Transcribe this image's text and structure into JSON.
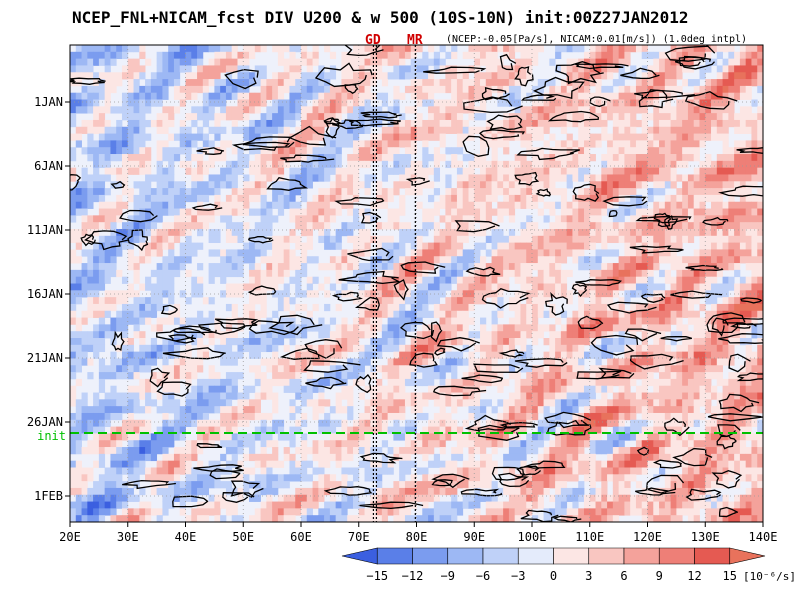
{
  "chart_data": {
    "type": "heatmap",
    "title": "NCEP_FNL+NICAM_fcst DIV U200 & w 500 (10S-10N) init:00Z27JAN2012",
    "subtitle": "(NCEP:-0.05[Pa/s], NICAM:0.01[m/s]) (1.0deg intpl)",
    "x_ticks": [
      "20E",
      "30E",
      "40E",
      "50E",
      "60E",
      "70E",
      "80E",
      "90E",
      "100E",
      "110E",
      "120E",
      "130E",
      "140E"
    ],
    "x_range": [
      20,
      140
    ],
    "y_ticks": [
      "1JAN",
      "6JAN",
      "11JAN",
      "16JAN",
      "21JAN",
      "26JAN",
      "1FEB"
    ],
    "init_label": "init",
    "markers": [
      {
        "label": "GD",
        "lon": 72.8
      },
      {
        "label": "MR",
        "lon": 79.8
      }
    ],
    "colorbar": {
      "ticks": [
        "-15",
        "-12",
        "-9",
        "-6",
        "-3",
        "0",
        "3",
        "6",
        "9",
        "12",
        "15"
      ],
      "unit": "[10⁻⁶/s]",
      "colors": [
        "#3b5fe0",
        "#5a7fe8",
        "#7b9cef",
        "#9db8f4",
        "#bfd1f8",
        "#e4ebfb",
        "#fce6e4",
        "#f9c6c1",
        "#f4a29b",
        "#ee7f77",
        "#e55a52",
        "#e8725c"
      ]
    },
    "colors": {
      "init_line": "#00c000",
      "marker_text": "#d00000"
    }
  }
}
